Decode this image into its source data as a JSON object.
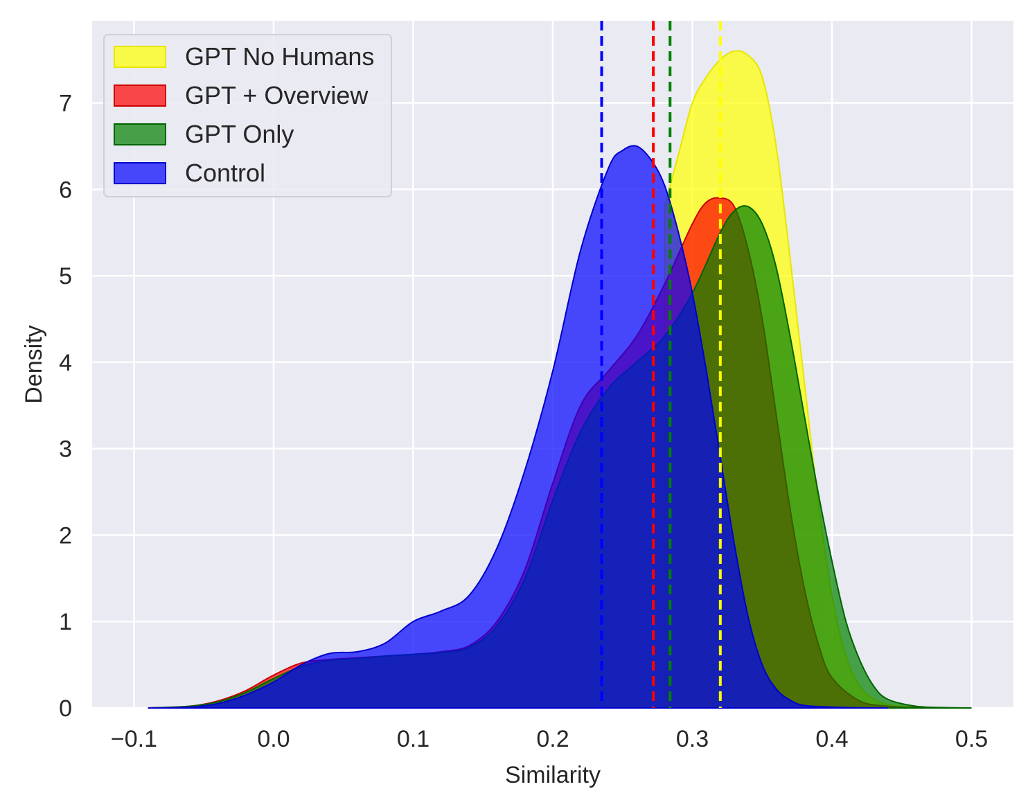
{
  "chart_data": {
    "type": "area",
    "title": "",
    "xlabel": "Similarity",
    "ylabel": "Density",
    "xlim": [
      -0.13,
      0.53
    ],
    "ylim": [
      0,
      7.95
    ],
    "x_ticks": [
      -0.1,
      0.0,
      0.1,
      0.2,
      0.3,
      0.4,
      0.5
    ],
    "x_tick_labels": [
      "−0.1",
      "0.0",
      "0.1",
      "0.2",
      "0.3",
      "0.4",
      "0.5"
    ],
    "y_ticks": [
      0,
      1,
      2,
      3,
      4,
      5,
      6,
      7
    ],
    "y_tick_labels": [
      "0",
      "1",
      "2",
      "3",
      "4",
      "5",
      "6",
      "7"
    ],
    "grid": true,
    "background": "#eaeaf2",
    "legend_position": "top-left",
    "series": [
      {
        "name": "GPT No Humans",
        "color": "#ffff00",
        "edge_color": "#e6e600",
        "mean": 0.32,
        "x": [
          0.28,
          0.29,
          0.3,
          0.31,
          0.32,
          0.33,
          0.34,
          0.35,
          0.36,
          0.37,
          0.38,
          0.39,
          0.4,
          0.41,
          0.42,
          0.43,
          0.44,
          0.45,
          0.46,
          0.47,
          0.48
        ],
        "values": [
          5.8,
          6.4,
          7.0,
          7.3,
          7.5,
          7.6,
          7.55,
          7.3,
          6.5,
          5.2,
          3.8,
          2.4,
          1.3,
          0.6,
          0.25,
          0.1,
          0.04,
          0.02,
          0.01,
          0.005,
          0.0
        ]
      },
      {
        "name": "GPT + Overview",
        "color": "#ff0000",
        "edge_color": "#cc0000",
        "mean": 0.272,
        "x": [
          -0.09,
          -0.06,
          -0.04,
          -0.02,
          0.0,
          0.02,
          0.04,
          0.06,
          0.08,
          0.1,
          0.12,
          0.14,
          0.16,
          0.18,
          0.2,
          0.22,
          0.24,
          0.26,
          0.28,
          0.3,
          0.31,
          0.32,
          0.33,
          0.34,
          0.35,
          0.36,
          0.37,
          0.38,
          0.39,
          0.4,
          0.42,
          0.44,
          0.46,
          0.48
        ],
        "values": [
          0.0,
          0.02,
          0.08,
          0.2,
          0.38,
          0.52,
          0.56,
          0.58,
          0.6,
          0.62,
          0.65,
          0.72,
          1.0,
          1.6,
          2.6,
          3.5,
          3.9,
          4.3,
          4.9,
          5.6,
          5.85,
          5.9,
          5.8,
          5.3,
          4.5,
          3.4,
          2.3,
          1.4,
          0.75,
          0.35,
          0.08,
          0.02,
          0.005,
          0.0
        ]
      },
      {
        "name": "GPT Only",
        "color": "#008000",
        "edge_color": "#006400",
        "mean": 0.284,
        "x": [
          -0.09,
          -0.06,
          -0.04,
          -0.02,
          0.0,
          0.02,
          0.04,
          0.06,
          0.08,
          0.1,
          0.12,
          0.14,
          0.16,
          0.18,
          0.2,
          0.22,
          0.24,
          0.26,
          0.28,
          0.3,
          0.32,
          0.33,
          0.34,
          0.35,
          0.36,
          0.37,
          0.38,
          0.39,
          0.4,
          0.41,
          0.42,
          0.43,
          0.44,
          0.46,
          0.48,
          0.5
        ],
        "values": [
          0.0,
          0.02,
          0.07,
          0.18,
          0.34,
          0.48,
          0.55,
          0.57,
          0.6,
          0.62,
          0.64,
          0.7,
          0.95,
          1.5,
          2.4,
          3.2,
          3.7,
          4.0,
          4.3,
          4.8,
          5.5,
          5.75,
          5.8,
          5.6,
          5.1,
          4.3,
          3.4,
          2.5,
          1.7,
          1.0,
          0.55,
          0.25,
          0.1,
          0.02,
          0.005,
          0.0
        ]
      },
      {
        "name": "Control",
        "color": "#0000ff",
        "edge_color": "#0000cc",
        "mean": 0.235,
        "x": [
          -0.09,
          -0.06,
          -0.04,
          -0.02,
          0.0,
          0.02,
          0.04,
          0.06,
          0.08,
          0.1,
          0.12,
          0.14,
          0.16,
          0.18,
          0.2,
          0.22,
          0.24,
          0.25,
          0.26,
          0.27,
          0.28,
          0.29,
          0.3,
          0.31,
          0.32,
          0.33,
          0.34,
          0.35,
          0.36,
          0.37,
          0.38,
          0.4,
          0.42,
          0.44
        ],
        "values": [
          0.0,
          0.01,
          0.05,
          0.15,
          0.3,
          0.5,
          0.63,
          0.65,
          0.75,
          1.0,
          1.12,
          1.3,
          1.85,
          2.75,
          3.9,
          5.3,
          6.25,
          6.45,
          6.5,
          6.35,
          6.05,
          5.5,
          4.8,
          3.9,
          2.9,
          1.9,
          1.05,
          0.5,
          0.22,
          0.09,
          0.03,
          0.01,
          0.002,
          0.0
        ]
      }
    ]
  }
}
